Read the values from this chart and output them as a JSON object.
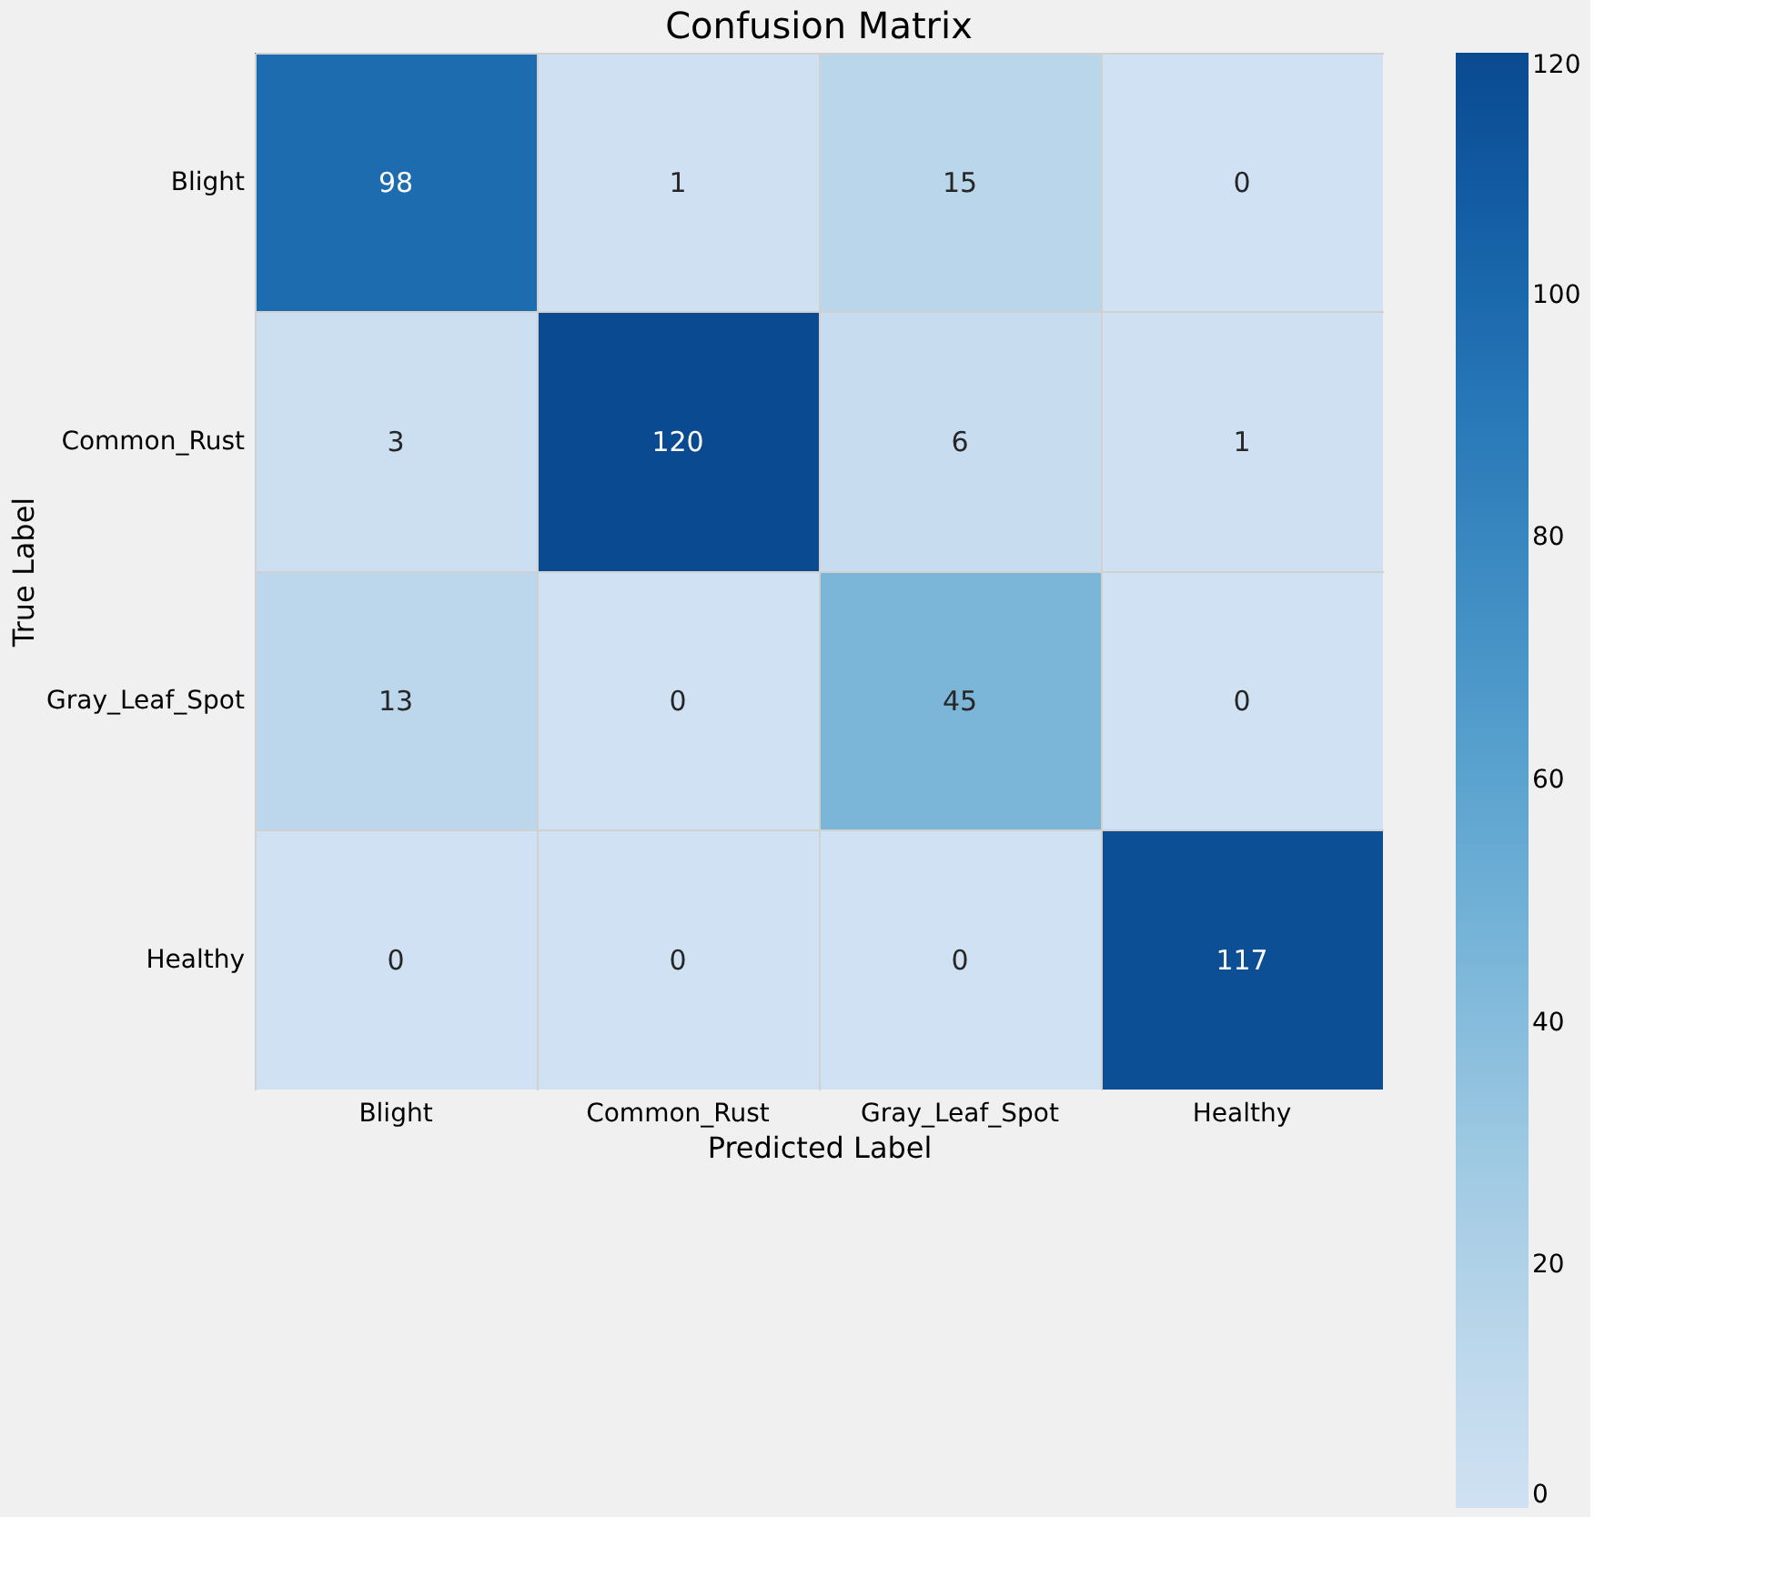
{
  "chart_data": {
    "type": "heatmap",
    "title": "Confusion Matrix",
    "xlabel": "Predicted Label",
    "ylabel": "True Label",
    "categories": [
      "Blight",
      "Common_Rust",
      "Gray_Leaf_Spot",
      "Healthy"
    ],
    "y_categories": [
      "Blight",
      "Common_Rust",
      "Gray_Leaf_Spot",
      "Healthy"
    ],
    "cells": [
      [
        98,
        1,
        15,
        0
      ],
      [
        3,
        120,
        6,
        1
      ],
      [
        13,
        0,
        45,
        0
      ],
      [
        0,
        0,
        0,
        117
      ]
    ],
    "clim": [
      0,
      120
    ],
    "cticks": [
      0,
      20,
      40,
      60,
      80,
      100,
      120
    ],
    "data_labels": true,
    "grid": true
  }
}
